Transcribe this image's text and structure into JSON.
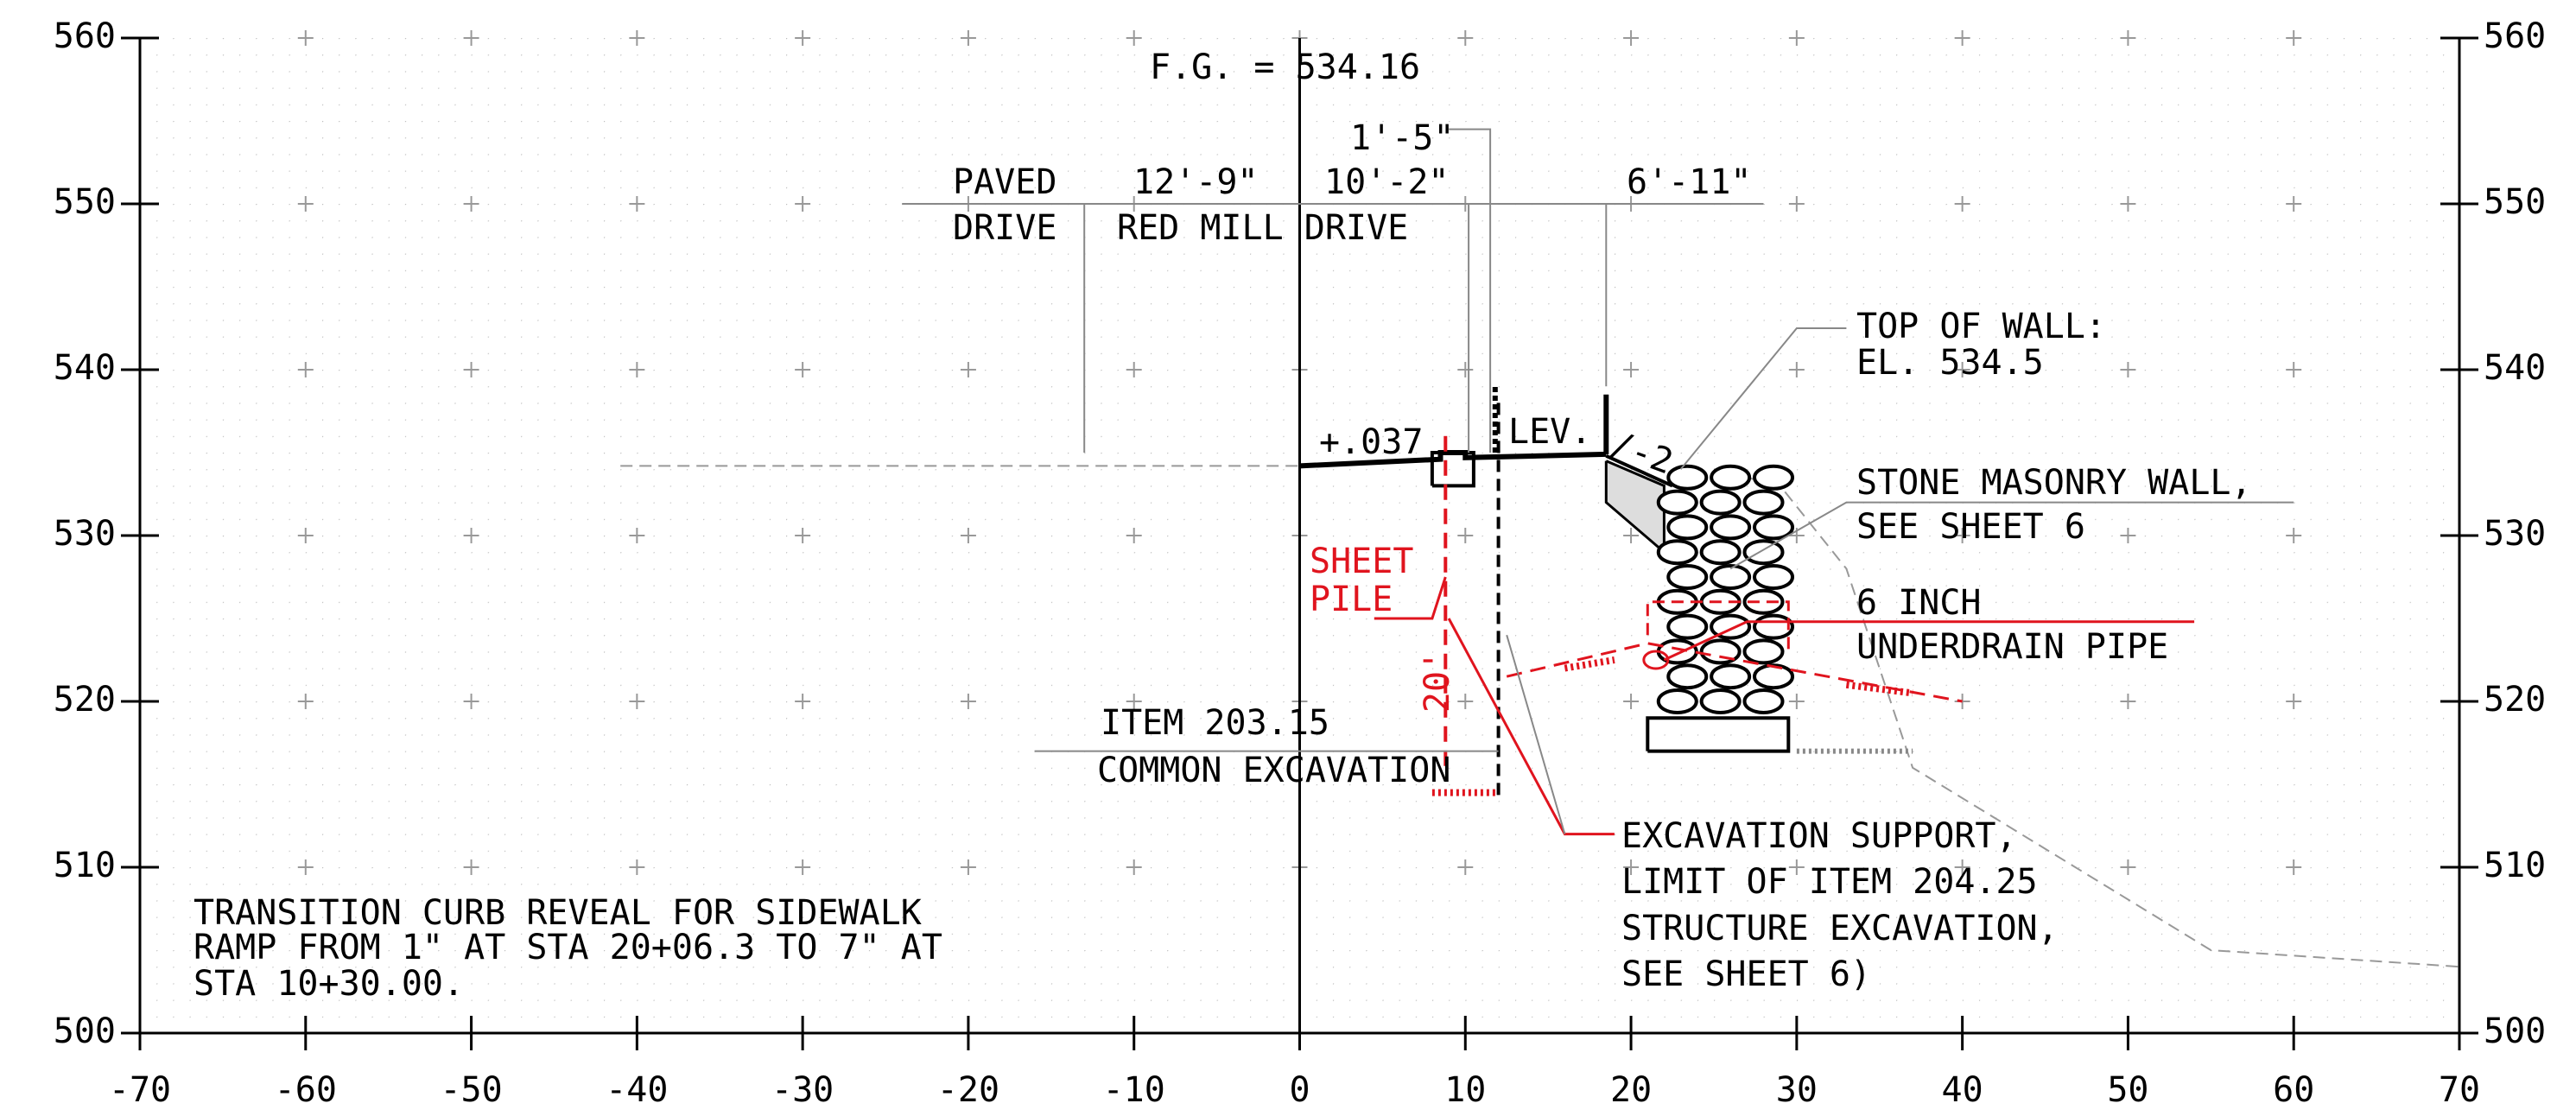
{
  "axes": {
    "x_ticks": [
      -70,
      -60,
      -50,
      -40,
      -30,
      -20,
      -10,
      0,
      10,
      20,
      30,
      40,
      50,
      60,
      70
    ],
    "y_ticks": [
      500,
      510,
      520,
      530,
      540,
      550,
      560
    ]
  },
  "labels": {
    "finished_grade": "F.G. = 534.16",
    "dim_1": "1'-5\"",
    "paved_1": "PAVED",
    "paved_2": "DRIVE",
    "dim_2": "12'-9\"",
    "red_mill": "RED MILL DRIVE",
    "dim_3": "10'-2\"",
    "dim_4": "6'-11\"",
    "top_wall_1": "TOP OF WALL:",
    "top_wall_2": "EL. 534.5",
    "slope": "+.037",
    "lev": "LEV.",
    "side_slope": "/-2",
    "stone_1": "STONE MASONRY WALL,",
    "stone_2": "SEE SHEET 6",
    "sheet_pile_1": "SHEET",
    "sheet_pile_2": "PILE",
    "underdrain_1": "6 INCH",
    "underdrain_2": "UNDERDRAIN PIPE",
    "depth": "20'",
    "item_1": "ITEM 203.15",
    "item_2": "COMMON EXCAVATION",
    "support_1": "EXCAVATION SUPPORT,",
    "support_2": "LIMIT OF ITEM 204.25",
    "support_3": "STRUCTURE EXCAVATION,",
    "support_4": "SEE SHEET 6)",
    "note_1": "TRANSITION CURB REVEAL FOR SIDEWALK",
    "note_2": "RAMP FROM 1\" AT STA 20+06.3 TO 7\" AT",
    "note_3": "STA 10+30.00."
  }
}
